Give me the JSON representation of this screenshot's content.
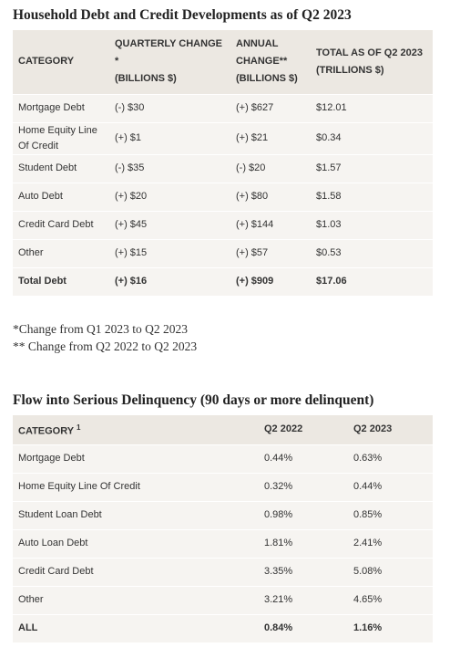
{
  "table1": {
    "title": "Household Debt and Credit Developments as of Q2 2023",
    "header": [
      [
        "CATEGORY"
      ],
      [
        "QUARTERLY CHANGE *",
        "(BILLIONS $)"
      ],
      [
        "ANNUAL",
        "CHANGE**",
        "(BILLIONS $)"
      ],
      [
        "TOTAL AS OF Q2 2023",
        "(TRILLIONS $)"
      ]
    ],
    "rows": [
      [
        "Mortgage Debt",
        "(-) $30",
        "(+) $627",
        "$12.01"
      ],
      [
        "Home Equity Line Of Credit",
        "(+) $1",
        "(+) $21",
        "$0.34"
      ],
      [
        "Student Debt",
        "(-) $35",
        "(-) $20",
        "$1.57"
      ],
      [
        "Auto Debt",
        "(+) $20",
        "(+) $80",
        "$1.58"
      ],
      [
        "Credit Card Debt",
        "(+) $45",
        "(+) $144",
        "$1.03"
      ],
      [
        "Other",
        "(+) $15",
        "(+) $57",
        "$0.53"
      ],
      [
        "Total Debt",
        "(+) $16",
        "(+) $909",
        "$17.06"
      ]
    ]
  },
  "footnotes": [
    "*Change from Q1 2023 to Q2 2023",
    "** Change from Q2 2022 to Q2 2023"
  ],
  "table2": {
    "title": "Flow into Serious Delinquency (90 days or more delinquent)",
    "header": [
      "CATEGORY",
      "Q2 2022",
      "Q2 2023"
    ],
    "header_note": "1",
    "rows": [
      [
        "Mortgage Debt",
        "0.44%",
        "0.63%"
      ],
      [
        "Home Equity Line Of Credit",
        "0.32%",
        "0.44%"
      ],
      [
        "Student Loan Debt",
        "0.98%",
        "0.85%"
      ],
      [
        "Auto Loan Debt",
        "1.81%",
        "2.41%"
      ],
      [
        "Credit Card Debt",
        "3.35%",
        "5.08%"
      ],
      [
        "Other",
        "3.21%",
        "4.65%"
      ],
      [
        "ALL",
        "0.84%",
        "1.16%"
      ]
    ]
  }
}
